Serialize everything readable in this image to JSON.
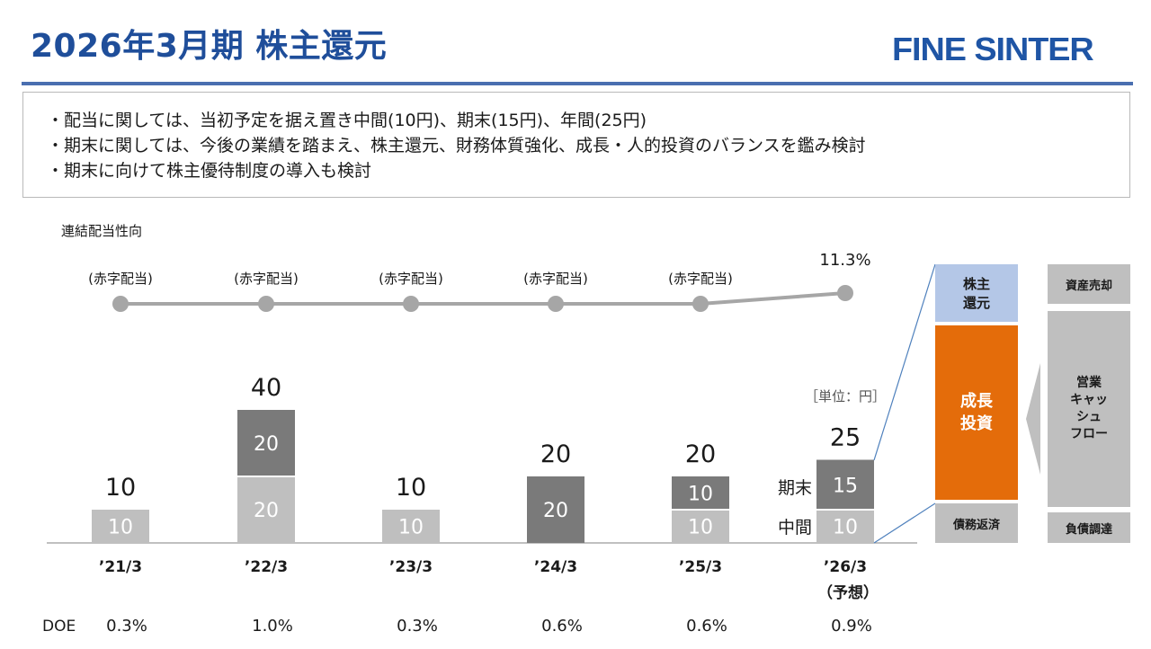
{
  "title": "2026年3月期 株主還元",
  "logo_text": "FINE SINTER",
  "bullets": [
    "・配当に関しては、当初予定を据え置き中間(10円)、期末(15円)、年間(25円)",
    "・期末に関しては、今後の業績を踏まえ、株主還元、財務体質強化、成長・人的投資のバランスを鑑み検討",
    "・期末に向けて株主優待制度の導入も検討"
  ],
  "chart_data": {
    "type": "bar",
    "stacked": true,
    "categories": [
      "’21/3",
      "’22/3",
      "’23/3",
      "’24/3",
      "’25/3",
      "’26/3"
    ],
    "category_sub": [
      "",
      "",
      "",
      "",
      "",
      "（予想）"
    ],
    "series": [
      {
        "name": "中間",
        "values": [
          10,
          20,
          10,
          0,
          10,
          10
        ]
      },
      {
        "name": "期末",
        "values": [
          0,
          20,
          0,
          20,
          10,
          15
        ]
      }
    ],
    "totals": [
      10,
      40,
      10,
      20,
      20,
      25
    ],
    "segment_labels_lower": [
      "10",
      "20",
      "10",
      "",
      "10",
      "10"
    ],
    "segment_labels_upper": [
      "",
      "20",
      "",
      "20",
      "10",
      "15"
    ],
    "series_side_labels": {
      "interim": "中間",
      "final": "期末"
    },
    "unit_label": "［単位：円］",
    "ylim": [
      0,
      45
    ],
    "payout_title": "連結配当性向",
    "payout_labels": [
      "(赤字配当)",
      "(赤字配当)",
      "(赤字配当)",
      "(赤字配当)",
      "(赤字配当)",
      "11.3%"
    ],
    "payout_values": [
      null,
      null,
      null,
      null,
      null,
      11.3
    ],
    "doe_label": "DOE",
    "doe_values": [
      "0.3%",
      "1.0%",
      "0.3%",
      "0.6%",
      "0.6%",
      "0.9%"
    ]
  },
  "colors": {
    "title": "#1f4e9a",
    "interim_bar": "#bfbfbf",
    "final_bar": "#7a7a7a",
    "line": "#a6a6a6",
    "growth": "#e46c0a",
    "shareholder": "#b4c7e7",
    "gray_box": "#bfbfbf"
  },
  "allocation": {
    "shareholder_return": "株主\n還元",
    "growth_investment": "成長\n投資",
    "debt_repayment": "債務返済",
    "asset_sale": "資産売却",
    "operating_cf": "営業\nキャッ\nシュ\nフロー",
    "debt_raising": "負債調達"
  }
}
